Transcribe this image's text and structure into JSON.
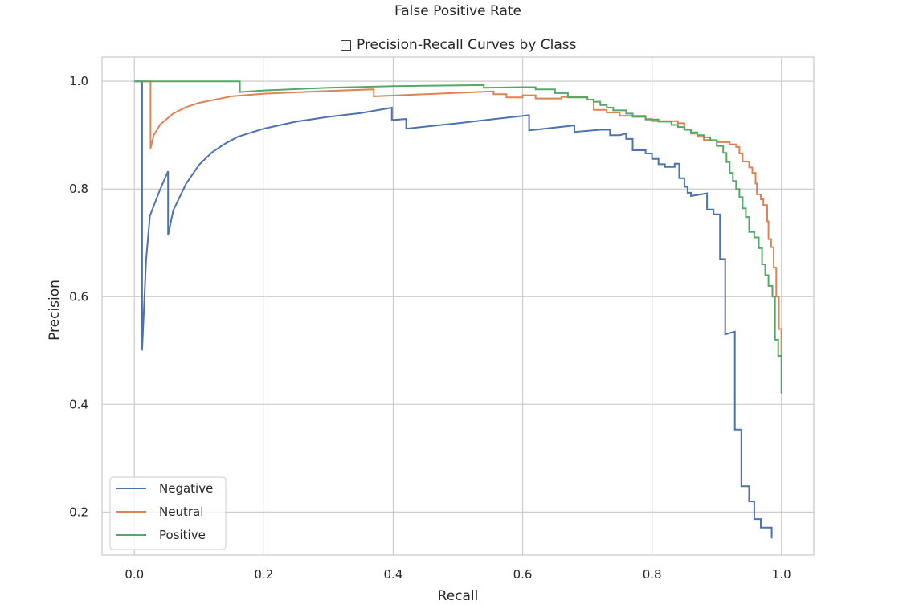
{
  "figure": {
    "top_text": "False Positive Rate"
  },
  "chart_data": {
    "type": "line",
    "title": "□ Precision-Recall Curves by Class",
    "xlabel": "Recall",
    "ylabel": "Precision",
    "xlim": [
      -0.05,
      1.05
    ],
    "ylim": [
      0.12,
      1.045
    ],
    "xticks": [
      0.0,
      0.2,
      0.4,
      0.6,
      0.8,
      1.0
    ],
    "xtick_labels": [
      "0.0",
      "0.2",
      "0.4",
      "0.6",
      "0.8",
      "1.0"
    ],
    "yticks": [
      0.2,
      0.4,
      0.6,
      0.8,
      1.0
    ],
    "ytick_labels": [
      "0.2",
      "0.4",
      "0.6",
      "0.8",
      "1.0"
    ],
    "grid": true,
    "legend_position": "lower-left",
    "series": [
      {
        "name": "Negative",
        "color": "#4c72b0",
        "points": [
          [
            0.0,
            1.0
          ],
          [
            0.012,
            1.0
          ],
          [
            0.012,
            0.5
          ],
          [
            0.018,
            0.667
          ],
          [
            0.024,
            0.75
          ],
          [
            0.04,
            0.8
          ],
          [
            0.052,
            0.833
          ],
          [
            0.052,
            0.714
          ],
          [
            0.06,
            0.76
          ],
          [
            0.08,
            0.81
          ],
          [
            0.1,
            0.845
          ],
          [
            0.12,
            0.868
          ],
          [
            0.14,
            0.884
          ],
          [
            0.16,
            0.897
          ],
          [
            0.2,
            0.912
          ],
          [
            0.25,
            0.925
          ],
          [
            0.3,
            0.934
          ],
          [
            0.35,
            0.941
          ],
          [
            0.398,
            0.951
          ],
          [
            0.398,
            0.928
          ],
          [
            0.42,
            0.93
          ],
          [
            0.42,
            0.912
          ],
          [
            0.5,
            0.922
          ],
          [
            0.55,
            0.929
          ],
          [
            0.61,
            0.937
          ],
          [
            0.61,
            0.909
          ],
          [
            0.68,
            0.918
          ],
          [
            0.68,
            0.906
          ],
          [
            0.72,
            0.91
          ],
          [
            0.735,
            0.91
          ],
          [
            0.735,
            0.9
          ],
          [
            0.75,
            0.9
          ],
          [
            0.76,
            0.903
          ],
          [
            0.76,
            0.893
          ],
          [
            0.77,
            0.893
          ],
          [
            0.77,
            0.872
          ],
          [
            0.79,
            0.872
          ],
          [
            0.79,
            0.866
          ],
          [
            0.8,
            0.866
          ],
          [
            0.8,
            0.856
          ],
          [
            0.81,
            0.856
          ],
          [
            0.81,
            0.846
          ],
          [
            0.82,
            0.846
          ],
          [
            0.82,
            0.841
          ],
          [
            0.835,
            0.841
          ],
          [
            0.835,
            0.847
          ],
          [
            0.842,
            0.847
          ],
          [
            0.842,
            0.82
          ],
          [
            0.85,
            0.82
          ],
          [
            0.85,
            0.804
          ],
          [
            0.855,
            0.804
          ],
          [
            0.855,
            0.793
          ],
          [
            0.86,
            0.793
          ],
          [
            0.86,
            0.787
          ],
          [
            0.885,
            0.792
          ],
          [
            0.885,
            0.762
          ],
          [
            0.895,
            0.762
          ],
          [
            0.895,
            0.753
          ],
          [
            0.905,
            0.753
          ],
          [
            0.905,
            0.67
          ],
          [
            0.913,
            0.67
          ],
          [
            0.913,
            0.53
          ],
          [
            0.928,
            0.535
          ],
          [
            0.928,
            0.353
          ],
          [
            0.938,
            0.353
          ],
          [
            0.938,
            0.248
          ],
          [
            0.95,
            0.248
          ],
          [
            0.95,
            0.22
          ],
          [
            0.958,
            0.22
          ],
          [
            0.958,
            0.187
          ],
          [
            0.968,
            0.187
          ],
          [
            0.968,
            0.171
          ],
          [
            0.985,
            0.171
          ],
          [
            0.985,
            0.151
          ]
        ]
      },
      {
        "name": "Neutral",
        "color": "#dd8452",
        "points": [
          [
            0.0,
            1.0
          ],
          [
            0.025,
            1.0
          ],
          [
            0.025,
            0.875
          ],
          [
            0.03,
            0.9
          ],
          [
            0.04,
            0.92
          ],
          [
            0.06,
            0.94
          ],
          [
            0.08,
            0.952
          ],
          [
            0.1,
            0.96
          ],
          [
            0.15,
            0.972
          ],
          [
            0.2,
            0.977
          ],
          [
            0.3,
            0.982
          ],
          [
            0.37,
            0.985
          ],
          [
            0.37,
            0.972
          ],
          [
            0.45,
            0.976
          ],
          [
            0.55,
            0.981
          ],
          [
            0.555,
            0.981
          ],
          [
            0.555,
            0.976
          ],
          [
            0.575,
            0.976
          ],
          [
            0.575,
            0.97
          ],
          [
            0.6,
            0.97
          ],
          [
            0.6,
            0.974
          ],
          [
            0.62,
            0.974
          ],
          [
            0.62,
            0.968
          ],
          [
            0.66,
            0.968
          ],
          [
            0.66,
            0.971
          ],
          [
            0.7,
            0.971
          ],
          [
            0.7,
            0.966
          ],
          [
            0.71,
            0.966
          ],
          [
            0.71,
            0.947
          ],
          [
            0.73,
            0.947
          ],
          [
            0.73,
            0.942
          ],
          [
            0.75,
            0.942
          ],
          [
            0.75,
            0.936
          ],
          [
            0.79,
            0.936
          ],
          [
            0.79,
            0.93
          ],
          [
            0.8,
            0.93
          ],
          [
            0.8,
            0.926
          ],
          [
            0.84,
            0.926
          ],
          [
            0.84,
            0.922
          ],
          [
            0.85,
            0.922
          ],
          [
            0.85,
            0.91
          ],
          [
            0.86,
            0.91
          ],
          [
            0.86,
            0.903
          ],
          [
            0.87,
            0.903
          ],
          [
            0.87,
            0.897
          ],
          [
            0.88,
            0.897
          ],
          [
            0.88,
            0.891
          ],
          [
            0.9,
            0.891
          ],
          [
            0.9,
            0.887
          ],
          [
            0.92,
            0.887
          ],
          [
            0.92,
            0.883
          ],
          [
            0.93,
            0.883
          ],
          [
            0.93,
            0.878
          ],
          [
            0.935,
            0.878
          ],
          [
            0.935,
            0.866
          ],
          [
            0.94,
            0.866
          ],
          [
            0.94,
            0.851
          ],
          [
            0.95,
            0.851
          ],
          [
            0.95,
            0.84
          ],
          [
            0.955,
            0.84
          ],
          [
            0.955,
            0.83
          ],
          [
            0.96,
            0.83
          ],
          [
            0.96,
            0.81
          ],
          [
            0.962,
            0.81
          ],
          [
            0.962,
            0.79
          ],
          [
            0.968,
            0.79
          ],
          [
            0.968,
            0.781
          ],
          [
            0.972,
            0.781
          ],
          [
            0.972,
            0.77
          ],
          [
            0.978,
            0.77
          ],
          [
            0.978,
            0.74
          ],
          [
            0.98,
            0.74
          ],
          [
            0.98,
            0.707
          ],
          [
            0.984,
            0.707
          ],
          [
            0.984,
            0.692
          ],
          [
            0.988,
            0.692
          ],
          [
            0.988,
            0.654
          ],
          [
            0.992,
            0.654
          ],
          [
            0.992,
            0.6
          ],
          [
            0.996,
            0.6
          ],
          [
            0.996,
            0.54
          ],
          [
            1.0,
            0.54
          ],
          [
            1.0,
            0.49
          ]
        ]
      },
      {
        "name": "Positive",
        "color": "#55a868",
        "points": [
          [
            0.0,
            1.0
          ],
          [
            0.163,
            1.0
          ],
          [
            0.163,
            0.98
          ],
          [
            0.2,
            0.983
          ],
          [
            0.3,
            0.988
          ],
          [
            0.4,
            0.991
          ],
          [
            0.54,
            0.993
          ],
          [
            0.54,
            0.988
          ],
          [
            0.6,
            0.989
          ],
          [
            0.62,
            0.989
          ],
          [
            0.62,
            0.985
          ],
          [
            0.65,
            0.985
          ],
          [
            0.65,
            0.978
          ],
          [
            0.67,
            0.978
          ],
          [
            0.67,
            0.97
          ],
          [
            0.7,
            0.97
          ],
          [
            0.7,
            0.966
          ],
          [
            0.71,
            0.966
          ],
          [
            0.71,
            0.962
          ],
          [
            0.72,
            0.962
          ],
          [
            0.72,
            0.956
          ],
          [
            0.73,
            0.956
          ],
          [
            0.73,
            0.951
          ],
          [
            0.74,
            0.951
          ],
          [
            0.74,
            0.946
          ],
          [
            0.76,
            0.946
          ],
          [
            0.76,
            0.94
          ],
          [
            0.77,
            0.94
          ],
          [
            0.77,
            0.934
          ],
          [
            0.79,
            0.934
          ],
          [
            0.79,
            0.929
          ],
          [
            0.81,
            0.929
          ],
          [
            0.81,
            0.925
          ],
          [
            0.83,
            0.925
          ],
          [
            0.83,
            0.919
          ],
          [
            0.84,
            0.919
          ],
          [
            0.84,
            0.915
          ],
          [
            0.85,
            0.915
          ],
          [
            0.85,
            0.91
          ],
          [
            0.86,
            0.91
          ],
          [
            0.86,
            0.905
          ],
          [
            0.87,
            0.905
          ],
          [
            0.87,
            0.9
          ],
          [
            0.88,
            0.9
          ],
          [
            0.88,
            0.896
          ],
          [
            0.89,
            0.896
          ],
          [
            0.89,
            0.89
          ],
          [
            0.9,
            0.89
          ],
          [
            0.9,
            0.88
          ],
          [
            0.91,
            0.88
          ],
          [
            0.91,
            0.867
          ],
          [
            0.915,
            0.867
          ],
          [
            0.915,
            0.85
          ],
          [
            0.92,
            0.85
          ],
          [
            0.92,
            0.83
          ],
          [
            0.925,
            0.83
          ],
          [
            0.925,
            0.815
          ],
          [
            0.93,
            0.815
          ],
          [
            0.93,
            0.8
          ],
          [
            0.935,
            0.8
          ],
          [
            0.935,
            0.785
          ],
          [
            0.94,
            0.785
          ],
          [
            0.94,
            0.764
          ],
          [
            0.945,
            0.764
          ],
          [
            0.945,
            0.748
          ],
          [
            0.95,
            0.748
          ],
          [
            0.95,
            0.72
          ],
          [
            0.958,
            0.72
          ],
          [
            0.958,
            0.71
          ],
          [
            0.965,
            0.71
          ],
          [
            0.965,
            0.69
          ],
          [
            0.97,
            0.69
          ],
          [
            0.97,
            0.66
          ],
          [
            0.975,
            0.66
          ],
          [
            0.975,
            0.64
          ],
          [
            0.98,
            0.64
          ],
          [
            0.98,
            0.62
          ],
          [
            0.986,
            0.62
          ],
          [
            0.986,
            0.6
          ],
          [
            0.99,
            0.6
          ],
          [
            0.99,
            0.52
          ],
          [
            0.995,
            0.52
          ],
          [
            0.995,
            0.49
          ],
          [
            1.0,
            0.49
          ],
          [
            1.0,
            0.42
          ]
        ]
      }
    ]
  }
}
